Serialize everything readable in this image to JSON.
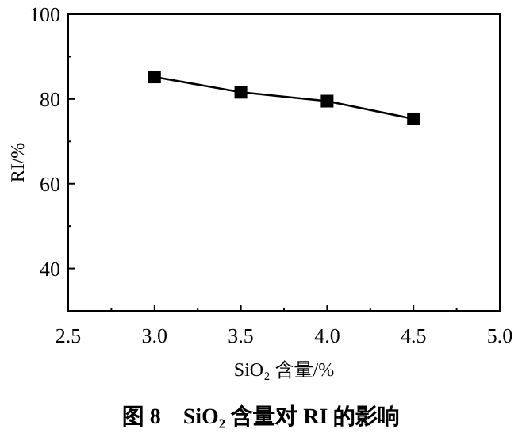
{
  "chart_data": {
    "type": "line",
    "title": "图 8　SiO₂ 含量对 RI 的影响",
    "xlabel": "SiO₂ 含量/%",
    "ylabel": "RI/%",
    "x": [
      3.0,
      3.5,
      4.0,
      4.5
    ],
    "series": [
      {
        "color": "#000000",
        "values": [
          85.2,
          81.6,
          79.5,
          75.3
        ]
      }
    ],
    "xlim": [
      2.5,
      5.0
    ],
    "xticks": [
      {
        "value": 2.5,
        "label": "2.5"
      },
      {
        "value": 3.0,
        "label": "3.0"
      },
      {
        "value": 3.5,
        "label": "3.5"
      },
      {
        "value": 4.0,
        "label": "4.0"
      },
      {
        "value": 4.5,
        "label": "4.5"
      },
      {
        "value": 5.0,
        "label": "5.0"
      }
    ],
    "ylim": [
      30,
      100
    ],
    "yticks": [
      40,
      60,
      80,
      100
    ],
    "marker": "square",
    "line_style": "solid",
    "grid": false
  }
}
